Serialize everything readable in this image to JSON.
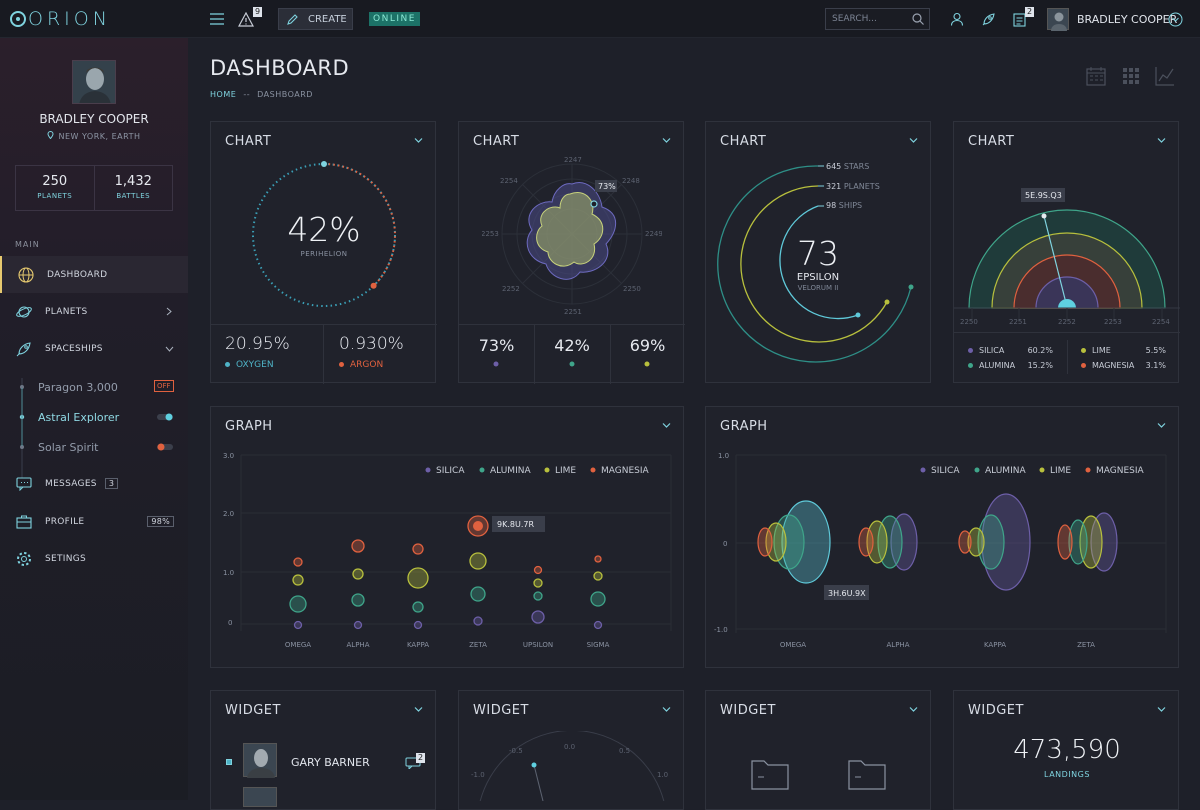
{
  "app": {
    "name": "ORION"
  },
  "topbar": {
    "alerts_count": "9",
    "create_label": "CREATE",
    "status": "ONLINE",
    "search_placeholder": "SEARCH...",
    "notes_count": "2",
    "user_name": "BRADLEY COOPER"
  },
  "sidebar": {
    "profile": {
      "name": "BRADLEY COOPER",
      "location": "NEW YORK, EARTH"
    },
    "stats": [
      {
        "value": "250",
        "label": "PLANETS"
      },
      {
        "value": "1,432",
        "label": "BATTLES"
      }
    ],
    "section_label": "MAIN",
    "items": [
      {
        "label": "DASHBOARD",
        "icon": "globe-icon"
      },
      {
        "label": "PLANETS",
        "icon": "planet-icon"
      },
      {
        "label": "SPACESHIPS",
        "icon": "rocket-icon"
      },
      {
        "label": "MESSAGES",
        "icon": "chat-icon",
        "badge": "3"
      },
      {
        "label": "PROFILE",
        "icon": "briefcase-icon",
        "badge": "98%"
      },
      {
        "label": "SETINGS",
        "icon": "gear-icon"
      }
    ],
    "subitems": [
      {
        "label": "Paragon 3,000",
        "state": "OFF"
      },
      {
        "label": "Astral Explorer",
        "state": "on"
      },
      {
        "label": "Solar Spirit",
        "state": "off"
      }
    ]
  },
  "page": {
    "title": "DASHBOARD",
    "breadcrumb_home": "HOME",
    "breadcrumb_sep": "--",
    "breadcrumb_current": "DASHBOARD"
  },
  "charts": {
    "c1": {
      "title": "CHART",
      "value": "42%",
      "label": "PERIHELION",
      "stats": [
        {
          "value": "20.95%",
          "label": "OXYGEN",
          "color": "#4fb3c7"
        },
        {
          "value": "0.930%",
          "label": "ARGON",
          "color": "#e0613f"
        }
      ]
    },
    "c2": {
      "title": "CHART",
      "tooltip": "73%",
      "axis": [
        "2247",
        "2248",
        "2249",
        "2250",
        "2251",
        "2252",
        "2253",
        "2254"
      ],
      "stats": [
        {
          "value": "73%",
          "color": "#6d5fa8"
        },
        {
          "value": "42%",
          "color": "#3fa58a"
        },
        {
          "value": "69%",
          "color": "#b8c03d"
        }
      ]
    },
    "c3": {
      "title": "CHART",
      "value": "73",
      "label": "EPSILON",
      "sublabel": "VELORUM II",
      "rows": [
        {
          "value": "645",
          "label": "STARS"
        },
        {
          "value": "321",
          "label": "PLANETS"
        },
        {
          "value": "98",
          "label": "SHIPS"
        }
      ]
    },
    "c4": {
      "title": "CHART",
      "tooltip": "5E.9S.Q3",
      "axis": [
        "2250",
        "2251",
        "2252",
        "2253",
        "2254"
      ],
      "legend": [
        {
          "name": "SILICA",
          "value": "60.2%",
          "color": "#6d5fa8"
        },
        {
          "name": "LIME",
          "value": "5.5%",
          "color": "#b8c03d"
        },
        {
          "name": "ALUMINA",
          "value": "15.2%",
          "color": "#3fa58a"
        },
        {
          "name": "MAGNESIA",
          "value": "3.1%",
          "color": "#e0613f"
        }
      ]
    }
  },
  "graphs": {
    "g1": {
      "title": "GRAPH",
      "tooltip": "9K.8U.7R",
      "yticks": [
        "3.0",
        "2.0",
        "1.0",
        "0"
      ],
      "categories": [
        "OMEGA",
        "ALPHA",
        "KAPPA",
        "ZETA",
        "UPSILON",
        "SIGMA"
      ],
      "legend": [
        "SILICA",
        "ALUMINA",
        "LIME",
        "MAGNESIA"
      ]
    },
    "g2": {
      "title": "GRAPH",
      "tooltip": "3H.6U.9X",
      "yticks": [
        "1.0",
        "0",
        "-1.0"
      ],
      "categories": [
        "OMEGA",
        "ALPHA",
        "KAPPA",
        "ZETA"
      ],
      "legend": [
        "SILICA",
        "ALUMINA",
        "LIME",
        "MAGNESIA"
      ]
    }
  },
  "widgets": {
    "w1": {
      "title": "WIDGET",
      "person": "GARY BARNER",
      "count": "2"
    },
    "w2": {
      "title": "WIDGET",
      "ticks": [
        "-0.5",
        "0.0",
        "0.5",
        "-1.0",
        "1.0"
      ]
    },
    "w3": {
      "title": "WIDGET"
    },
    "w4": {
      "title": "WIDGET",
      "value": "473,590",
      "label": "LANDINGS"
    }
  },
  "colors": {
    "silica": "#6d5fa8",
    "alumina": "#3fa58a",
    "lime": "#b8c03d",
    "magnesia": "#e0613f",
    "accent": "#7fd3df"
  }
}
